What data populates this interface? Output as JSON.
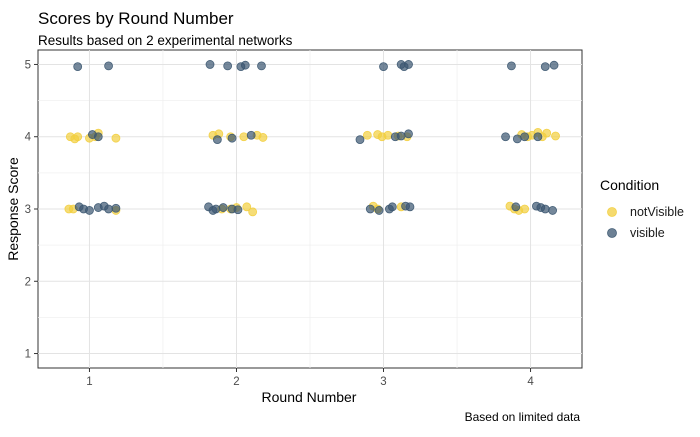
{
  "chart_data": {
    "type": "scatter",
    "title": "Scores by Round Number",
    "subtitle": "Results based on 2 experimental networks",
    "xlabel": "Round Number",
    "ylabel": "Response Score",
    "caption": "Based on limited data",
    "x_ticks": [
      1,
      2,
      3,
      4
    ],
    "y_ticks": [
      1,
      2,
      3,
      4,
      5
    ],
    "xlim": [
      0.65,
      4.35
    ],
    "ylim": [
      0.8,
      5.2
    ],
    "grid": true,
    "legend": {
      "title": "Condition",
      "position": "right"
    },
    "series": [
      {
        "name": "notVisible",
        "color": "#F2CE3D",
        "points": [
          {
            "x": 0.87,
            "y": 4.0
          },
          {
            "x": 0.9,
            "y": 3.97
          },
          {
            "x": 0.92,
            "y": 4.0
          },
          {
            "x": 1.0,
            "y": 3.98
          },
          {
            "x": 1.04,
            "y": 4.0
          },
          {
            "x": 1.06,
            "y": 4.05
          },
          {
            "x": 1.18,
            "y": 3.98
          },
          {
            "x": 0.86,
            "y": 3.0
          },
          {
            "x": 0.89,
            "y": 3.0
          },
          {
            "x": 1.18,
            "y": 2.98
          },
          {
            "x": 1.84,
            "y": 4.02
          },
          {
            "x": 1.88,
            "y": 4.04
          },
          {
            "x": 1.96,
            "y": 4.0
          },
          {
            "x": 2.05,
            "y": 4.0
          },
          {
            "x": 2.14,
            "y": 4.02
          },
          {
            "x": 2.18,
            "y": 3.99
          },
          {
            "x": 1.9,
            "y": 3.0
          },
          {
            "x": 1.96,
            "y": 3.0
          },
          {
            "x": 2.0,
            "y": 3.02
          },
          {
            "x": 2.07,
            "y": 3.03
          },
          {
            "x": 2.11,
            "y": 2.96
          },
          {
            "x": 2.89,
            "y": 4.02
          },
          {
            "x": 2.96,
            "y": 4.03
          },
          {
            "x": 2.99,
            "y": 4.0
          },
          {
            "x": 3.03,
            "y": 4.02
          },
          {
            "x": 3.1,
            "y": 4.01
          },
          {
            "x": 3.16,
            "y": 4.0
          },
          {
            "x": 2.93,
            "y": 3.04
          },
          {
            "x": 2.96,
            "y": 3.0
          },
          {
            "x": 3.12,
            "y": 3.03
          },
          {
            "x": 3.94,
            "y": 4.03
          },
          {
            "x": 3.98,
            "y": 4.0
          },
          {
            "x": 4.01,
            "y": 4.02
          },
          {
            "x": 4.05,
            "y": 4.06
          },
          {
            "x": 4.08,
            "y": 4.0
          },
          {
            "x": 4.11,
            "y": 4.05
          },
          {
            "x": 4.17,
            "y": 4.01
          },
          {
            "x": 3.86,
            "y": 3.04
          },
          {
            "x": 3.89,
            "y": 3.0
          },
          {
            "x": 3.92,
            "y": 2.98
          },
          {
            "x": 3.96,
            "y": 3.0
          }
        ]
      },
      {
        "name": "visible",
        "color": "#3B5670",
        "points": [
          {
            "x": 0.92,
            "y": 4.97
          },
          {
            "x": 1.13,
            "y": 4.98
          },
          {
            "x": 1.02,
            "y": 4.03
          },
          {
            "x": 1.06,
            "y": 4.0
          },
          {
            "x": 0.93,
            "y": 3.03
          },
          {
            "x": 0.96,
            "y": 3.0
          },
          {
            "x": 1.0,
            "y": 2.98
          },
          {
            "x": 1.06,
            "y": 3.02
          },
          {
            "x": 1.1,
            "y": 3.04
          },
          {
            "x": 1.13,
            "y": 3.0
          },
          {
            "x": 1.18,
            "y": 3.01
          },
          {
            "x": 1.82,
            "y": 5.0
          },
          {
            "x": 1.94,
            "y": 4.98
          },
          {
            "x": 2.03,
            "y": 4.97
          },
          {
            "x": 2.06,
            "y": 4.99
          },
          {
            "x": 2.17,
            "y": 4.98
          },
          {
            "x": 1.87,
            "y": 3.96
          },
          {
            "x": 1.97,
            "y": 3.98
          },
          {
            "x": 2.1,
            "y": 4.02
          },
          {
            "x": 1.81,
            "y": 3.03
          },
          {
            "x": 1.84,
            "y": 2.98
          },
          {
            "x": 1.86,
            "y": 3.0
          },
          {
            "x": 1.91,
            "y": 3.02
          },
          {
            "x": 1.97,
            "y": 3.0
          },
          {
            "x": 2.01,
            "y": 2.99
          },
          {
            "x": 3.0,
            "y": 4.97
          },
          {
            "x": 3.12,
            "y": 5.0
          },
          {
            "x": 3.14,
            "y": 4.97
          },
          {
            "x": 3.17,
            "y": 5.0
          },
          {
            "x": 2.84,
            "y": 3.96
          },
          {
            "x": 3.08,
            "y": 4.0
          },
          {
            "x": 3.12,
            "y": 4.01
          },
          {
            "x": 3.17,
            "y": 4.04
          },
          {
            "x": 2.91,
            "y": 3.0
          },
          {
            "x": 2.97,
            "y": 2.98
          },
          {
            "x": 3.04,
            "y": 3.0
          },
          {
            "x": 3.06,
            "y": 3.03
          },
          {
            "x": 3.15,
            "y": 3.04
          },
          {
            "x": 3.18,
            "y": 3.03
          },
          {
            "x": 3.87,
            "y": 4.98
          },
          {
            "x": 4.1,
            "y": 4.97
          },
          {
            "x": 4.16,
            "y": 4.99
          },
          {
            "x": 3.83,
            "y": 4.0
          },
          {
            "x": 3.91,
            "y": 3.97
          },
          {
            "x": 3.96,
            "y": 4.0
          },
          {
            "x": 4.05,
            "y": 4.0
          },
          {
            "x": 3.9,
            "y": 3.03
          },
          {
            "x": 4.04,
            "y": 3.04
          },
          {
            "x": 4.07,
            "y": 3.02
          },
          {
            "x": 4.1,
            "y": 3.0
          },
          {
            "x": 4.15,
            "y": 2.98
          }
        ]
      }
    ]
  }
}
